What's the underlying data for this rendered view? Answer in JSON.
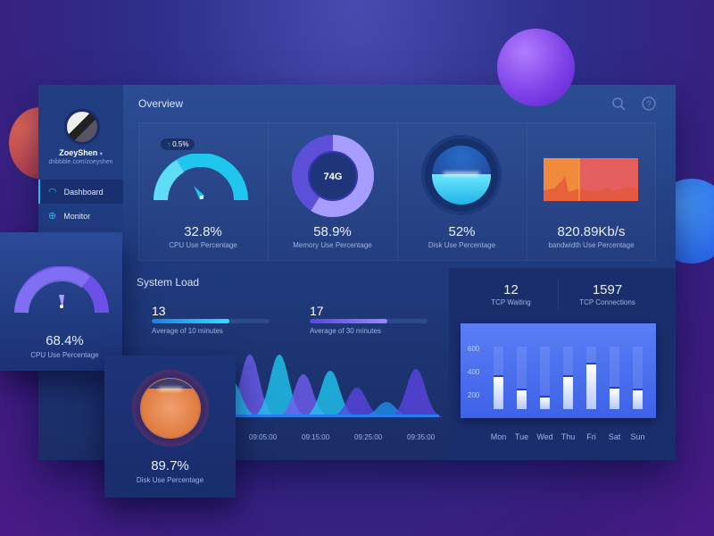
{
  "colors": {
    "accent_cyan": "#1fc6ee",
    "accent_purple": "#6f5ef0",
    "bandwidth": "#ee6a4c",
    "disk_orange": "#e07a35"
  },
  "sidebar": {
    "user_name": "ZoeyShen",
    "user_link": "dribbble.com/zoeyshen",
    "items": [
      {
        "label": "Dashboard",
        "icon": "speedometer-icon",
        "active": true
      },
      {
        "label": "Monitor",
        "icon": "crosshair-icon",
        "active": false
      }
    ]
  },
  "header": {
    "title": "Overview",
    "icons": [
      "search-icon",
      "help-icon"
    ]
  },
  "overview": {
    "cpu": {
      "value": "32.8%",
      "label": "CPU Use Percentage",
      "delta": "0.5%",
      "level": 0.328
    },
    "memory": {
      "value": "58.9%",
      "label": "Memory Use Percentage",
      "center": "74G",
      "level": 0.589
    },
    "disk": {
      "value": "52%",
      "label": "Disk Use Percentage",
      "level": 0.52
    },
    "bandwidth": {
      "value": "820.89Kb/s",
      "label": "bandwidth Use Percentage"
    }
  },
  "system_load": {
    "title": "System Load",
    "avg10": {
      "value": "13",
      "label": "Average of 10 minutes",
      "level": 0.66
    },
    "avg30": {
      "value": "17",
      "label": "Average of 30 minutes",
      "level": 0.66
    },
    "x_ticks": [
      "09:05:00",
      "09:15:00",
      "09:25:00",
      "09:35:00"
    ]
  },
  "tcp": {
    "waiting": {
      "value": "12",
      "label": "TCP Waiting"
    },
    "connections": {
      "value": "1597",
      "label": "TCP Connections"
    }
  },
  "chart_data": {
    "type": "bar",
    "categories": [
      "Mon",
      "Tue",
      "Wed",
      "Thu",
      "Fri",
      "Sat",
      "Sun"
    ],
    "values": [
      377,
      262,
      200,
      377,
      485,
      277,
      262
    ],
    "y_ticks": [
      "600",
      "400",
      "200"
    ],
    "ylim": [
      0,
      700
    ]
  },
  "float_cpu": {
    "value": "68.4%",
    "label": "CPU Use Percentage",
    "level": 0.684
  },
  "float_disk": {
    "value": "89.7%",
    "label": "Disk Use Percentage",
    "level": 0.897
  }
}
